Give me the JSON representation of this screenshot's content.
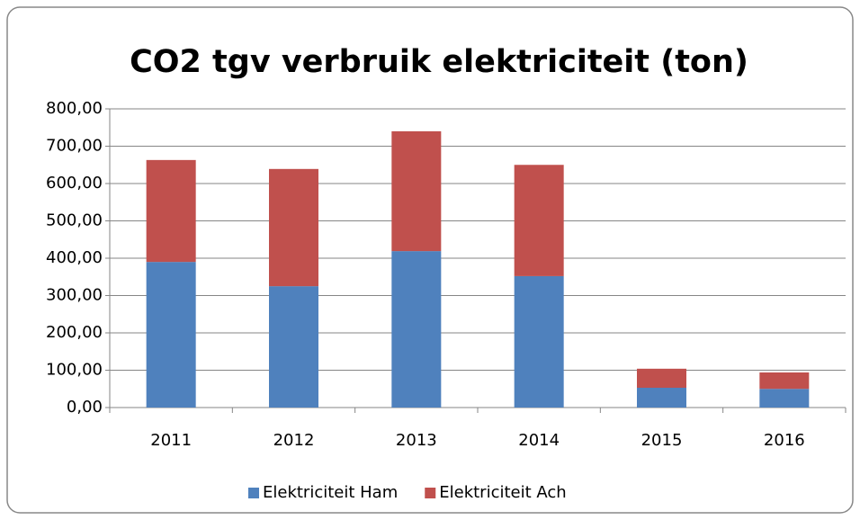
{
  "chart_data": {
    "type": "stacked-bar",
    "title": "CO2 tgv verbruik elektriciteit (ton)",
    "categories": [
      "2011",
      "2012",
      "2013",
      "2014",
      "2015",
      "2016"
    ],
    "series": [
      {
        "name": "Elektriciteit Ham",
        "color": "#4f81bd",
        "values": [
          390,
          325,
          419,
          352,
          53,
          50
        ]
      },
      {
        "name": "Elektriciteit Ach",
        "color": "#c0504d",
        "values": [
          273,
          314,
          321,
          298,
          51,
          44
        ]
      }
    ],
    "ylim": [
      0,
      800
    ],
    "yticks": [
      {
        "value": 0,
        "label": "0,00"
      },
      {
        "value": 100,
        "label": "100,00"
      },
      {
        "value": 200,
        "label": "200,00"
      },
      {
        "value": 300,
        "label": "300,00"
      },
      {
        "value": 400,
        "label": "400,00"
      },
      {
        "value": 500,
        "label": "500,00"
      },
      {
        "value": 600,
        "label": "600,00"
      },
      {
        "value": 700,
        "label": "700,00"
      },
      {
        "value": 800,
        "label": "800,00"
      }
    ],
    "grid": true,
    "legend": "bottom"
  }
}
